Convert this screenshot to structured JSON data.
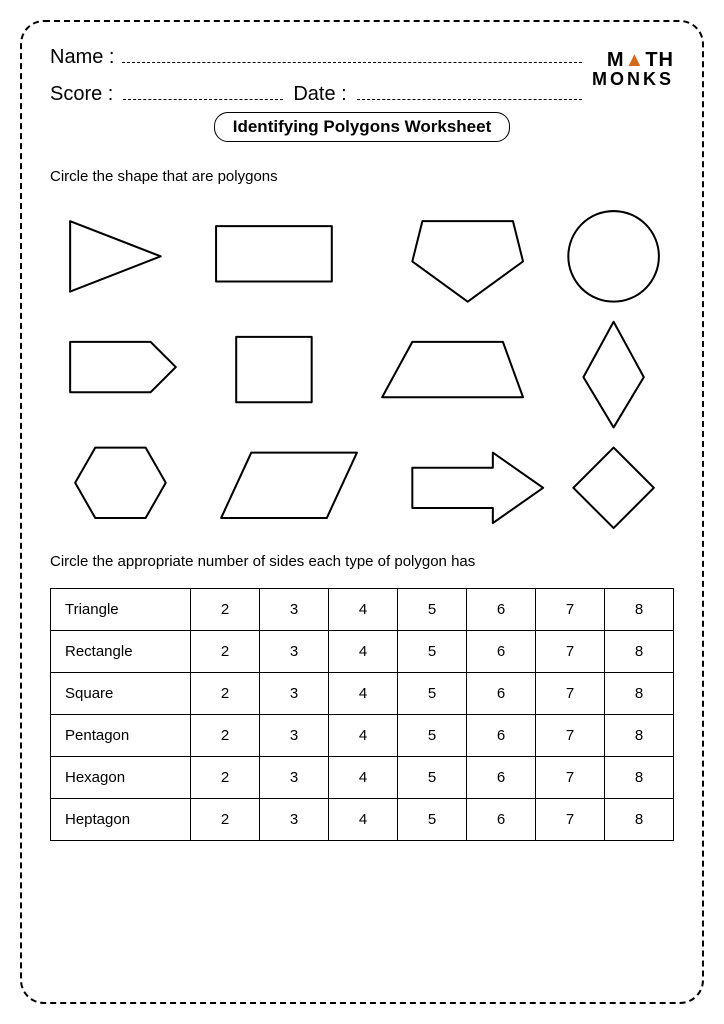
{
  "header": {
    "name_label": "Name :",
    "score_label": "Score :",
    "date_label": "Date :"
  },
  "logo": {
    "line1_pre": "M",
    "line1_a": "▲",
    "line1_post": "TH",
    "line2": "MONKS",
    "accent_color": "#d46a1c"
  },
  "title": "Identifying Polygons Worksheet",
  "section1": {
    "instruction": "Circle the shape that are polygons"
  },
  "section2": {
    "instruction": "Circle the appropriate number of sides each type of polygon has",
    "columns": [
      2,
      3,
      4,
      5,
      6,
      7,
      8
    ],
    "rows": [
      {
        "label": "Triangle",
        "values": [
          2,
          3,
          4,
          5,
          6,
          7,
          8
        ]
      },
      {
        "label": "Rectangle",
        "values": [
          2,
          3,
          4,
          5,
          6,
          7,
          8
        ]
      },
      {
        "label": "Square",
        "values": [
          2,
          3,
          4,
          5,
          6,
          7,
          8
        ]
      },
      {
        "label": "Pentagon",
        "values": [
          2,
          3,
          4,
          5,
          6,
          7,
          8
        ]
      },
      {
        "label": "Hexagon",
        "values": [
          2,
          3,
          4,
          5,
          6,
          7,
          8
        ]
      },
      {
        "label": "Heptagon",
        "values": [
          2,
          3,
          4,
          5,
          6,
          7,
          8
        ]
      }
    ]
  },
  "style": {
    "stroke": "#000000",
    "stroke_width": 2,
    "fill": "none",
    "page_bg": "#ffffff"
  }
}
